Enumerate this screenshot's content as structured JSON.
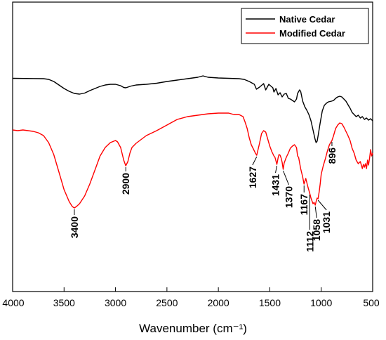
{
  "chart_data": {
    "type": "line",
    "xlabel": "Wavenumber (cm⁻¹)",
    "xlim": [
      4000,
      500
    ],
    "x_reversed": true,
    "x_ticks": [
      4000,
      3500,
      3000,
      2500,
      2000,
      1500,
      1000,
      500
    ],
    "y_ticks_shown": false,
    "legend_position": "top-right",
    "series": [
      {
        "name": "Native Cedar",
        "color": "#000000",
        "points": [
          [
            4000,
            111.5
          ],
          [
            3800,
            111.8
          ],
          [
            3700,
            112
          ],
          [
            3650,
            113
          ],
          [
            3600,
            116
          ],
          [
            3550,
            121
          ],
          [
            3500,
            126
          ],
          [
            3450,
            130
          ],
          [
            3400,
            133
          ],
          [
            3350,
            134
          ],
          [
            3300,
            132.5
          ],
          [
            3250,
            129
          ],
          [
            3200,
            126
          ],
          [
            3150,
            123
          ],
          [
            3100,
            121
          ],
          [
            3050,
            120
          ],
          [
            3000,
            120
          ],
          [
            2950,
            122
          ],
          [
            2920,
            124.5
          ],
          [
            2900,
            125
          ],
          [
            2880,
            124
          ],
          [
            2850,
            122.5
          ],
          [
            2800,
            121
          ],
          [
            2700,
            120
          ],
          [
            2600,
            118.5
          ],
          [
            2500,
            116
          ],
          [
            2400,
            114
          ],
          [
            2300,
            112
          ],
          [
            2200,
            110
          ],
          [
            2150,
            108
          ],
          [
            2100,
            110
          ],
          [
            2000,
            111
          ],
          [
            1900,
            111.5
          ],
          [
            1800,
            112
          ],
          [
            1750,
            113
          ],
          [
            1700,
            116
          ],
          [
            1650,
            120
          ],
          [
            1630,
            127
          ],
          [
            1600,
            124
          ],
          [
            1560,
            119
          ],
          [
            1540,
            128
          ],
          [
            1510,
            120
          ],
          [
            1470,
            125
          ],
          [
            1460,
            131
          ],
          [
            1440,
            126
          ],
          [
            1420,
            135
          ],
          [
            1400,
            132
          ],
          [
            1380,
            138
          ],
          [
            1360,
            134
          ],
          [
            1340,
            133
          ],
          [
            1320,
            140
          ],
          [
            1300,
            141
          ],
          [
            1280,
            143
          ],
          [
            1260,
            145
          ],
          [
            1240,
            141
          ],
          [
            1230,
            133
          ],
          [
            1210,
            128
          ],
          [
            1200,
            130
          ],
          [
            1180,
            144
          ],
          [
            1160,
            152
          ],
          [
            1140,
            157
          ],
          [
            1120,
            163
          ],
          [
            1100,
            172
          ],
          [
            1080,
            185
          ],
          [
            1060,
            198
          ],
          [
            1050,
            203
          ],
          [
            1040,
            201
          ],
          [
            1030,
            193
          ],
          [
            1010,
            175
          ],
          [
            990,
            158
          ],
          [
            970,
            150
          ],
          [
            950,
            147
          ],
          [
            930,
            145
          ],
          [
            900,
            144
          ],
          [
            880,
            143
          ],
          [
            860,
            140
          ],
          [
            840,
            138
          ],
          [
            820,
            137
          ],
          [
            800,
            138
          ],
          [
            780,
            141
          ],
          [
            760,
            144
          ],
          [
            740,
            149
          ],
          [
            720,
            154
          ],
          [
            700,
            160
          ],
          [
            680,
            163
          ],
          [
            660,
            166
          ],
          [
            640,
            164
          ],
          [
            620,
            168
          ],
          [
            600,
            166
          ],
          [
            580,
            170
          ],
          [
            560,
            168
          ],
          [
            540,
            171
          ],
          [
            520,
            169
          ],
          [
            500,
            172
          ]
        ]
      },
      {
        "name": "Modified Cedar",
        "color": "#ff0000",
        "points": [
          [
            4000,
            185
          ],
          [
            3950,
            186
          ],
          [
            3900,
            185
          ],
          [
            3850,
            186
          ],
          [
            3800,
            187
          ],
          [
            3750,
            189
          ],
          [
            3700,
            193
          ],
          [
            3650,
            203
          ],
          [
            3600,
            220
          ],
          [
            3550,
            245
          ],
          [
            3500,
            270
          ],
          [
            3450,
            287
          ],
          [
            3420,
            294
          ],
          [
            3400,
            296
          ],
          [
            3380,
            294
          ],
          [
            3350,
            290
          ],
          [
            3300,
            279
          ],
          [
            3250,
            262
          ],
          [
            3200,
            242
          ],
          [
            3150,
            222
          ],
          [
            3100,
            210
          ],
          [
            3050,
            203
          ],
          [
            3000,
            200
          ],
          [
            2980,
            202
          ],
          [
            2950,
            210
          ],
          [
            2920,
            228
          ],
          [
            2900,
            236
          ],
          [
            2880,
            230
          ],
          [
            2860,
            218
          ],
          [
            2840,
            210
          ],
          [
            2800,
            204
          ],
          [
            2700,
            193
          ],
          [
            2600,
            186
          ],
          [
            2500,
            178
          ],
          [
            2400,
            170
          ],
          [
            2300,
            166
          ],
          [
            2200,
            164
          ],
          [
            2100,
            162
          ],
          [
            2000,
            161
          ],
          [
            1900,
            161
          ],
          [
            1850,
            163
          ],
          [
            1800,
            163
          ],
          [
            1760,
            166
          ],
          [
            1740,
            174
          ],
          [
            1720,
            183
          ],
          [
            1700,
            196
          ],
          [
            1680,
            206
          ],
          [
            1660,
            212
          ],
          [
            1640,
            218
          ],
          [
            1627,
            221
          ],
          [
            1600,
            204
          ],
          [
            1580,
            190
          ],
          [
            1560,
            186
          ],
          [
            1540,
            188
          ],
          [
            1520,
            198
          ],
          [
            1500,
            208
          ],
          [
            1480,
            216
          ],
          [
            1460,
            222
          ],
          [
            1450,
            224
          ],
          [
            1431,
            234
          ],
          [
            1420,
            225
          ],
          [
            1410,
            220
          ],
          [
            1400,
            221
          ],
          [
            1390,
            225
          ],
          [
            1380,
            231
          ],
          [
            1370,
            241
          ],
          [
            1360,
            232
          ],
          [
            1340,
            224
          ],
          [
            1320,
            218
          ],
          [
            1300,
            211
          ],
          [
            1280,
            208
          ],
          [
            1260,
            206
          ],
          [
            1240,
            210
          ],
          [
            1230,
            222
          ],
          [
            1220,
            224
          ],
          [
            1200,
            240
          ],
          [
            1180,
            252
          ],
          [
            1167,
            262
          ],
          [
            1150,
            254
          ],
          [
            1130,
            266
          ],
          [
            1112,
            275
          ],
          [
            1100,
            282
          ],
          [
            1080,
            290
          ],
          [
            1070,
            288
          ],
          [
            1058,
            292
          ],
          [
            1050,
            287
          ],
          [
            1040,
            282
          ],
          [
            1031,
            283
          ],
          [
            1020,
            273
          ],
          [
            1010,
            262
          ],
          [
            1000,
            248
          ],
          [
            980,
            236
          ],
          [
            960,
            226
          ],
          [
            940,
            215
          ],
          [
            920,
            206
          ],
          [
            896,
            200
          ],
          [
            880,
            193
          ],
          [
            860,
            183
          ],
          [
            840,
            178
          ],
          [
            820,
            175
          ],
          [
            800,
            176
          ],
          [
            780,
            181
          ],
          [
            760,
            187
          ],
          [
            740,
            193
          ],
          [
            720,
            200
          ],
          [
            700,
            211
          ],
          [
            680,
            218
          ],
          [
            660,
            228
          ],
          [
            640,
            233
          ],
          [
            620,
            230
          ],
          [
            600,
            240
          ],
          [
            590,
            234
          ],
          [
            580,
            238
          ],
          [
            570,
            233
          ],
          [
            560,
            240
          ],
          [
            550,
            228
          ],
          [
            540,
            235
          ],
          [
            530,
            225
          ],
          [
            520,
            213
          ],
          [
            510,
            222
          ],
          [
            500,
            218
          ]
        ]
      }
    ],
    "annotations": [
      {
        "label": "3400",
        "x": 3400
      },
      {
        "label": "2900",
        "x": 2900
      },
      {
        "label": "1627",
        "x": 1627
      },
      {
        "label": "1431",
        "x": 1431
      },
      {
        "label": "1370",
        "x": 1370
      },
      {
        "label": "1167",
        "x": 1167
      },
      {
        "label": "1112",
        "x": 1112
      },
      {
        "label": "1058",
        "x": 1058
      },
      {
        "label": "1031",
        "x": 1031
      },
      {
        "label": "896",
        "x": 896
      }
    ]
  }
}
